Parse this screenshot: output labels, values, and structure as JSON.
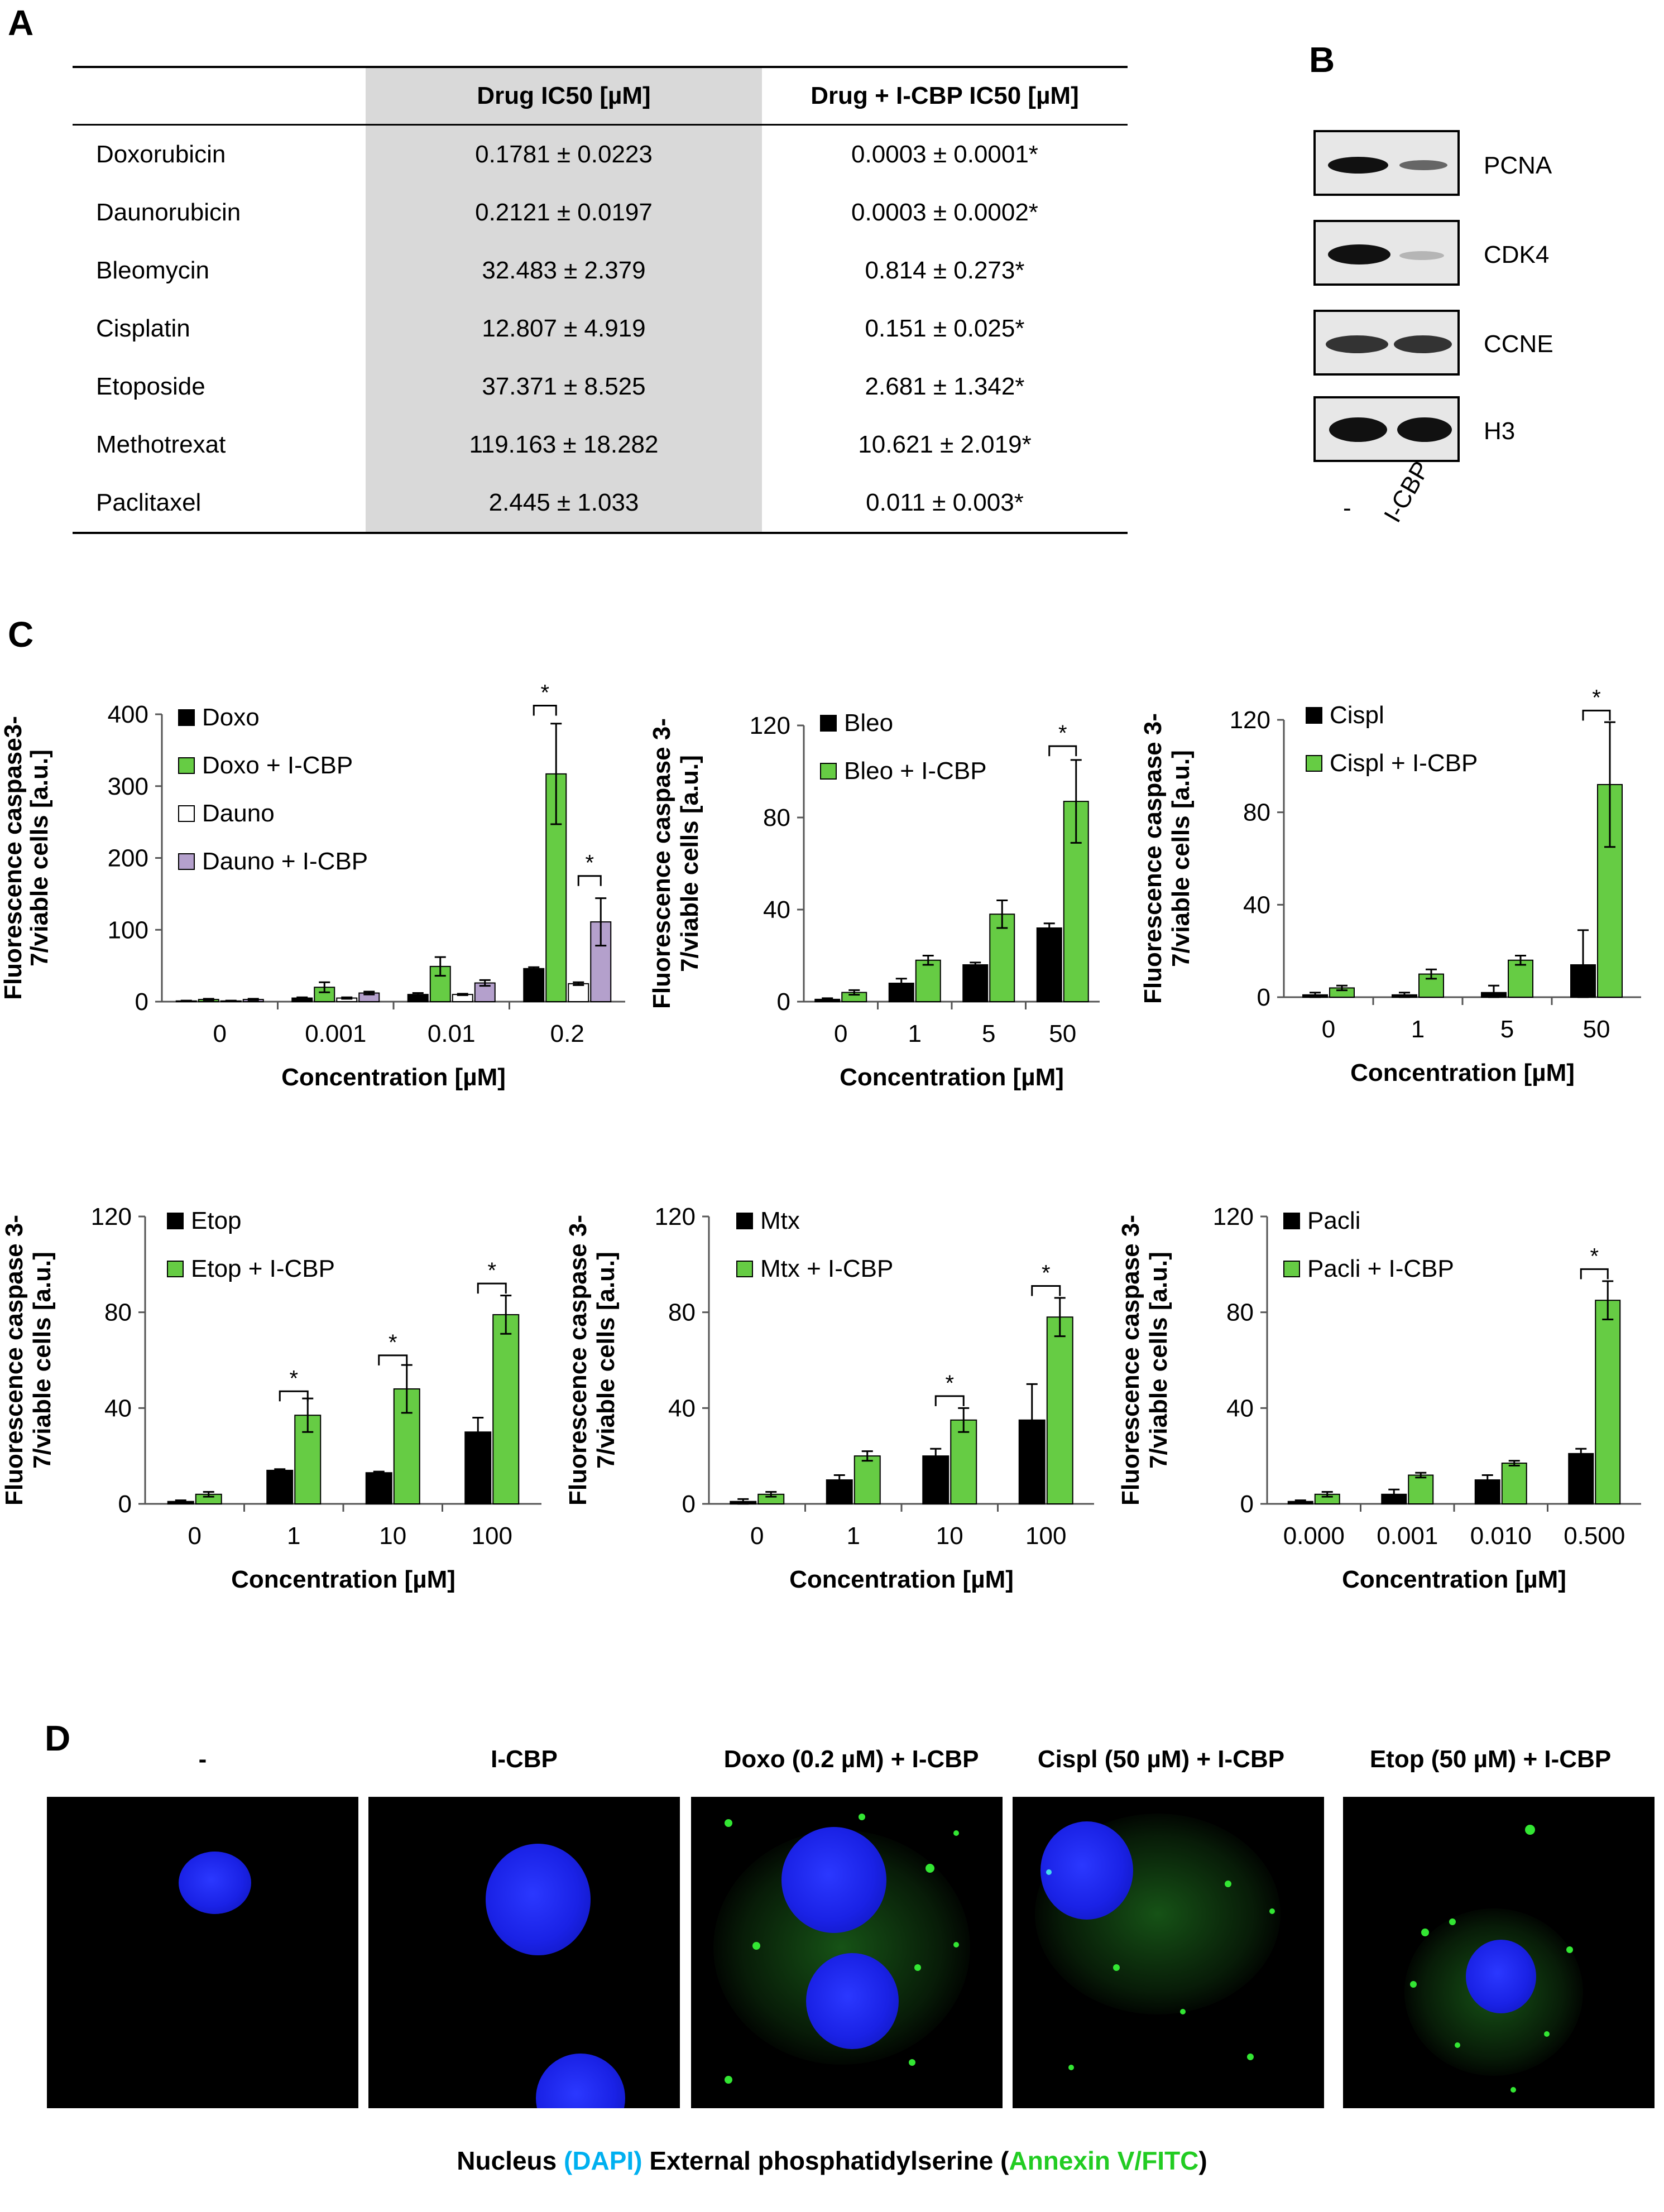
{
  "panels": {
    "a": "A",
    "b": "B",
    "c": "C",
    "d": "D"
  },
  "table": {
    "headers": [
      "",
      "Drug IC50 [µM]",
      "Drug + I-CBP IC50 [µM]"
    ],
    "rows": [
      [
        "Doxorubicin",
        "0.1781 ± 0.0223",
        "0.0003 ± 0.0001*"
      ],
      [
        "Daunorubicin",
        "0.2121 ± 0.0197",
        "0.0003 ± 0.0002*"
      ],
      [
        "Bleomycin",
        "32.483 ± 2.379",
        "0.814 ± 0.273*"
      ],
      [
        "Cisplatin",
        "12.807 ± 4.919",
        "0.151 ± 0.025*"
      ],
      [
        "Etoposide",
        "37.371 ± 8.525",
        "2.681 ± 1.342*"
      ],
      [
        "Methotrexat",
        "119.163 ± 18.282",
        "10.621 ± 2.019*"
      ],
      [
        "Paclitaxel",
        "2.445 ± 1.033",
        "0.011 ± 0.003*"
      ]
    ]
  },
  "blots": {
    "labels": [
      "PCNA",
      "CDK4",
      "CCNE",
      "H3"
    ],
    "lanes": [
      "-",
      "I-CBP"
    ]
  },
  "chart_data": [
    {
      "type": "bar",
      "categories": [
        "0",
        "0.001",
        "0.01",
        "0.2"
      ],
      "xlabel": "Concentration [µM]",
      "ylabel": [
        "Fluorescence caspase3-",
        "7/viable cells [a.u.]"
      ],
      "ylim": [
        0,
        400
      ],
      "yticks": [
        0,
        100,
        200,
        300,
        400
      ],
      "legend": "top-left",
      "series": [
        {
          "name": "Doxo",
          "color": "#000000",
          "values": [
            1,
            5,
            10,
            46
          ],
          "errors": [
            0.5,
            1,
            2,
            2
          ]
        },
        {
          "name": "Doxo + I-CBP",
          "color": "#66cc44",
          "values": [
            3,
            20,
            49,
            317
          ],
          "errors": [
            1,
            7,
            13,
            70
          ]
        },
        {
          "name": "Dauno",
          "color": "#ffffff",
          "values": [
            1,
            5,
            10,
            25
          ],
          "errors": [
            0.5,
            1,
            1,
            2
          ]
        },
        {
          "name": "Dauno + I-CBP",
          "color": "#b4a0cc",
          "values": [
            3,
            12,
            26,
            111
          ],
          "errors": [
            1,
            2,
            4,
            33
          ]
        }
      ],
      "significance": [
        {
          "category": 3,
          "a": 0,
          "b": 1,
          "label": "*",
          "y": 412
        },
        {
          "category": 3,
          "a": 2,
          "b": 3,
          "label": "*",
          "y": 175
        }
      ]
    },
    {
      "type": "bar",
      "categories": [
        "0",
        "1",
        "5",
        "50"
      ],
      "xlabel": "Concentration [µM]",
      "ylabel": [
        "Fluorescence caspase 3-",
        "7/viable cells [a.u.]"
      ],
      "ylim": [
        0,
        120
      ],
      "yticks": [
        0,
        40,
        80,
        120
      ],
      "legend": "top-left",
      "series": [
        {
          "name": "Bleo",
          "color": "#000000",
          "values": [
            1,
            8,
            16,
            32
          ],
          "errors": [
            0.5,
            2,
            1,
            2
          ]
        },
        {
          "name": "Bleo + I-CBP",
          "color": "#66cc44",
          "values": [
            4,
            18,
            38,
            87
          ],
          "errors": [
            1,
            2,
            6,
            18
          ]
        }
      ],
      "significance": [
        {
          "category": 3,
          "a": 0,
          "b": 1,
          "label": "*",
          "y": 111
        }
      ]
    },
    {
      "type": "bar",
      "categories": [
        "0",
        "1",
        "5",
        "50"
      ],
      "xlabel": "Concentration [µM]",
      "ylabel": [
        "Fluorescence caspase 3-",
        "7/viable cells [a.u.]"
      ],
      "ylim": [
        0,
        120
      ],
      "yticks": [
        0,
        40,
        80,
        120
      ],
      "legend": "top-left",
      "series": [
        {
          "name": "Cispl",
          "color": "#000000",
          "values": [
            1,
            1,
            2,
            14
          ],
          "errors": [
            1,
            1,
            3,
            15
          ]
        },
        {
          "name": "Cispl + I-CBP",
          "color": "#66cc44",
          "values": [
            4,
            10,
            16,
            92
          ],
          "errors": [
            1,
            2,
            2,
            27
          ]
        }
      ],
      "significance": [
        {
          "category": 3,
          "a": 0,
          "b": 1,
          "label": "*",
          "y": 124
        }
      ]
    },
    {
      "type": "bar",
      "categories": [
        "0",
        "1",
        "10",
        "100"
      ],
      "xlabel": "Concentration [µM]",
      "ylabel": [
        "Fluorescence caspase 3-",
        "7/viable cells [a.u.]"
      ],
      "ylim": [
        0,
        120
      ],
      "yticks": [
        0,
        40,
        80,
        120
      ],
      "legend": "top-left",
      "series": [
        {
          "name": "Etop",
          "color": "#000000",
          "values": [
            1,
            14,
            13,
            30
          ],
          "errors": [
            0.5,
            0.5,
            0.5,
            6
          ]
        },
        {
          "name": "Etop + I-CBP",
          "color": "#66cc44",
          "values": [
            4,
            37,
            48,
            79
          ],
          "errors": [
            1,
            7,
            10,
            8
          ]
        }
      ],
      "significance": [
        {
          "category": 1,
          "a": 0,
          "b": 1,
          "label": "*",
          "y": 47
        },
        {
          "category": 2,
          "a": 0,
          "b": 1,
          "label": "*",
          "y": 62
        },
        {
          "category": 3,
          "a": 0,
          "b": 1,
          "label": "*",
          "y": 92
        }
      ]
    },
    {
      "type": "bar",
      "categories": [
        "0",
        "1",
        "10",
        "100"
      ],
      "xlabel": "Concentration [µM]",
      "ylabel": [
        "Fluorescence caspase 3-",
        "7/viable cells [a.u.]"
      ],
      "ylim": [
        0,
        120
      ],
      "yticks": [
        0,
        40,
        80,
        120
      ],
      "legend": "top-left",
      "series": [
        {
          "name": "Mtx",
          "color": "#000000",
          "values": [
            1,
            10,
            20,
            35
          ],
          "errors": [
            1,
            2,
            3,
            15
          ]
        },
        {
          "name": "Mtx + I-CBP",
          "color": "#66cc44",
          "values": [
            4,
            20,
            35,
            78
          ],
          "errors": [
            1,
            2,
            5,
            8
          ]
        }
      ],
      "significance": [
        {
          "category": 2,
          "a": 0,
          "b": 1,
          "label": "*",
          "y": 45
        },
        {
          "category": 3,
          "a": 0,
          "b": 1,
          "label": "*",
          "y": 91
        }
      ]
    },
    {
      "type": "bar",
      "categories": [
        "0.000",
        "0.001",
        "0.010",
        "0.500"
      ],
      "xlabel": "Concentration [µM]",
      "ylabel": [
        "Fluorescence caspase 3-",
        "7/viable cells [a.u.]"
      ],
      "ylim": [
        0,
        120
      ],
      "yticks": [
        0,
        40,
        80,
        120
      ],
      "legend": "top-left",
      "series": [
        {
          "name": "Pacli",
          "color": "#000000",
          "values": [
            1,
            4,
            10,
            21
          ],
          "errors": [
            0.5,
            2,
            2,
            2
          ]
        },
        {
          "name": "Pacli + I-CBP",
          "color": "#66cc44",
          "values": [
            4,
            12,
            17,
            85
          ],
          "errors": [
            1,
            1,
            1,
            8
          ]
        }
      ],
      "significance": [
        {
          "category": 3,
          "a": 0,
          "b": 1,
          "label": "*",
          "y": 98
        }
      ]
    }
  ],
  "micro": {
    "titles": [
      "-",
      "I-CBP",
      "Doxo (0.2 µM) + I-CBP",
      "Cispl (50 µM) + I-CBP",
      "Etop (50 µM) + I-CBP"
    ]
  },
  "legend_d": {
    "nucleus": "Nucleus ",
    "dapi": "(DAPI)",
    "external": " External phosphatidylserine (",
    "annexin": "Annexin V/FITC",
    "close": ")",
    "dapi_color": "#00b0f0",
    "annexin_color": "#22cc22"
  }
}
